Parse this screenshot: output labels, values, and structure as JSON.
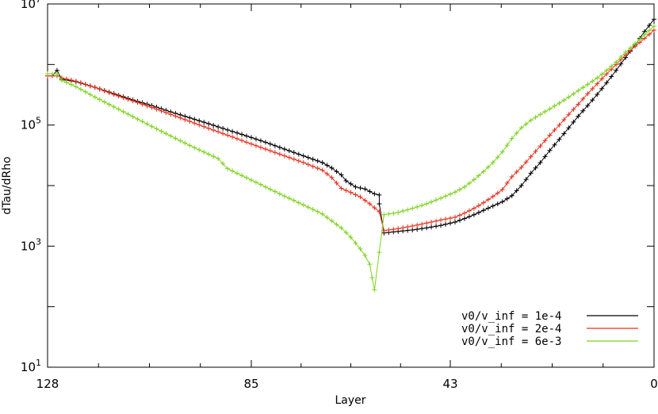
{
  "chart_data": {
    "type": "line",
    "xlabel": "Layer",
    "ylabel": "dTau/dRho",
    "xlim": [
      128,
      0
    ],
    "ylim": [
      10,
      10000000
    ],
    "yscale": "log",
    "x_ticks": [
      128,
      85,
      43,
      0
    ],
    "y_ticks": [
      {
        "value": 10,
        "base": "10",
        "exp": "1"
      },
      {
        "value": 1000,
        "base": "10",
        "exp": "3"
      },
      {
        "value": 100000,
        "base": "10",
        "exp": "5"
      },
      {
        "value": 10000000,
        "base": "10",
        "exp": "7"
      }
    ],
    "grid": false,
    "legend_position": "bottom-right",
    "series": [
      {
        "name": "v0/v_inf = 1e-4",
        "color": "#000000",
        "points": [
          [
            128,
            650000
          ],
          [
            127,
            650000
          ],
          [
            126,
            800000
          ],
          [
            125,
            570000
          ],
          [
            122,
            520000
          ],
          [
            118,
            420000
          ],
          [
            114,
            330000
          ],
          [
            110,
            260000
          ],
          [
            106,
            210000
          ],
          [
            102,
            165000
          ],
          [
            98,
            132000
          ],
          [
            94,
            105000
          ],
          [
            90,
            83000
          ],
          [
            86,
            66000
          ],
          [
            82,
            52000
          ],
          [
            78,
            40000
          ],
          [
            74,
            31000
          ],
          [
            70,
            24000
          ],
          [
            68,
            19500
          ],
          [
            66,
            15000
          ],
          [
            65,
            12000
          ],
          [
            63,
            9500
          ],
          [
            61,
            8800
          ],
          [
            60,
            8000
          ],
          [
            59,
            7300
          ],
          [
            58,
            7000
          ],
          [
            58,
            5000
          ],
          [
            57,
            1650
          ],
          [
            54,
            1750
          ],
          [
            51,
            1850
          ],
          [
            48,
            2000
          ],
          [
            45,
            2200
          ],
          [
            42,
            2500
          ],
          [
            40,
            2850
          ],
          [
            38,
            3300
          ],
          [
            36,
            3900
          ],
          [
            34,
            4600
          ],
          [
            32,
            5400
          ],
          [
            30,
            6800
          ],
          [
            28,
            10000
          ],
          [
            26,
            16000
          ],
          [
            24,
            24000
          ],
          [
            22,
            38000
          ],
          [
            20,
            58000
          ],
          [
            18,
            90000
          ],
          [
            16,
            140000
          ],
          [
            14,
            210000
          ],
          [
            12,
            320000
          ],
          [
            10,
            500000
          ],
          [
            8,
            800000
          ],
          [
            6,
            1300000
          ],
          [
            4,
            2100000
          ],
          [
            2,
            3500000
          ],
          [
            0,
            5600000
          ]
        ]
      },
      {
        "name": "v0/v_inf = 2e-4",
        "color": "#e8321e",
        "points": [
          [
            128,
            650000
          ],
          [
            126,
            650000
          ],
          [
            125,
            600000
          ],
          [
            122,
            530000
          ],
          [
            118,
            420000
          ],
          [
            114,
            320000
          ],
          [
            110,
            250000
          ],
          [
            106,
            195000
          ],
          [
            102,
            150000
          ],
          [
            98,
            115000
          ],
          [
            94,
            88000
          ],
          [
            90,
            68000
          ],
          [
            86,
            52000
          ],
          [
            82,
            40000
          ],
          [
            78,
            31000
          ],
          [
            74,
            24000
          ],
          [
            70,
            18000
          ],
          [
            68,
            13500
          ],
          [
            66,
            9000
          ],
          [
            64,
            7700
          ],
          [
            62,
            6500
          ],
          [
            60,
            5000
          ],
          [
            58,
            3700
          ],
          [
            57,
            1800
          ],
          [
            54,
            1950
          ],
          [
            51,
            2150
          ],
          [
            48,
            2400
          ],
          [
            45,
            2700
          ],
          [
            42,
            3000
          ],
          [
            40,
            3500
          ],
          [
            38,
            4200
          ],
          [
            36,
            5200
          ],
          [
            34,
            6600
          ],
          [
            32,
            8600
          ],
          [
            30,
            14000
          ],
          [
            28,
            20000
          ],
          [
            26,
            30000
          ],
          [
            24,
            45000
          ],
          [
            22,
            68000
          ],
          [
            20,
            100000
          ],
          [
            18,
            150000
          ],
          [
            16,
            220000
          ],
          [
            14,
            330000
          ],
          [
            12,
            480000
          ],
          [
            10,
            700000
          ],
          [
            8,
            1000000
          ],
          [
            6,
            1450000
          ],
          [
            4,
            2000000
          ],
          [
            2,
            2700000
          ],
          [
            0,
            3700000
          ]
        ]
      },
      {
        "name": "v0/v_inf = 6e-3",
        "color": "#7ed321",
        "points": [
          [
            128,
            700000
          ],
          [
            126,
            700000
          ],
          [
            125,
            550000
          ],
          [
            122,
            430000
          ],
          [
            118,
            290000
          ],
          [
            114,
            200000
          ],
          [
            110,
            138000
          ],
          [
            106,
            95000
          ],
          [
            102,
            66000
          ],
          [
            98,
            46000
          ],
          [
            94,
            33000
          ],
          [
            92,
            28000
          ],
          [
            90,
            19000
          ],
          [
            86,
            13500
          ],
          [
            82,
            9500
          ],
          [
            78,
            6700
          ],
          [
            74,
            4800
          ],
          [
            70,
            3400
          ],
          [
            68,
            2600
          ],
          [
            66,
            2000
          ],
          [
            64,
            1400
          ],
          [
            62,
            900
          ],
          [
            61,
            700
          ],
          [
            60,
            500
          ],
          [
            59.5,
            300
          ],
          [
            59,
            190
          ],
          [
            57,
            3300
          ],
          [
            54,
            3600
          ],
          [
            51,
            4200
          ],
          [
            48,
            5000
          ],
          [
            45,
            6200
          ],
          [
            42,
            7800
          ],
          [
            40,
            9500
          ],
          [
            38,
            12500
          ],
          [
            36,
            17000
          ],
          [
            34,
            24000
          ],
          [
            32,
            36000
          ],
          [
            30,
            60000
          ],
          [
            28,
            90000
          ],
          [
            26,
            120000
          ],
          [
            24,
            150000
          ],
          [
            22,
            185000
          ],
          [
            20,
            230000
          ],
          [
            18,
            290000
          ],
          [
            16,
            370000
          ],
          [
            14,
            470000
          ],
          [
            12,
            600000
          ],
          [
            10,
            800000
          ],
          [
            8,
            1100000
          ],
          [
            6,
            1600000
          ],
          [
            4,
            2200000
          ],
          [
            2,
            3100000
          ],
          [
            0,
            4300000
          ]
        ]
      }
    ]
  }
}
